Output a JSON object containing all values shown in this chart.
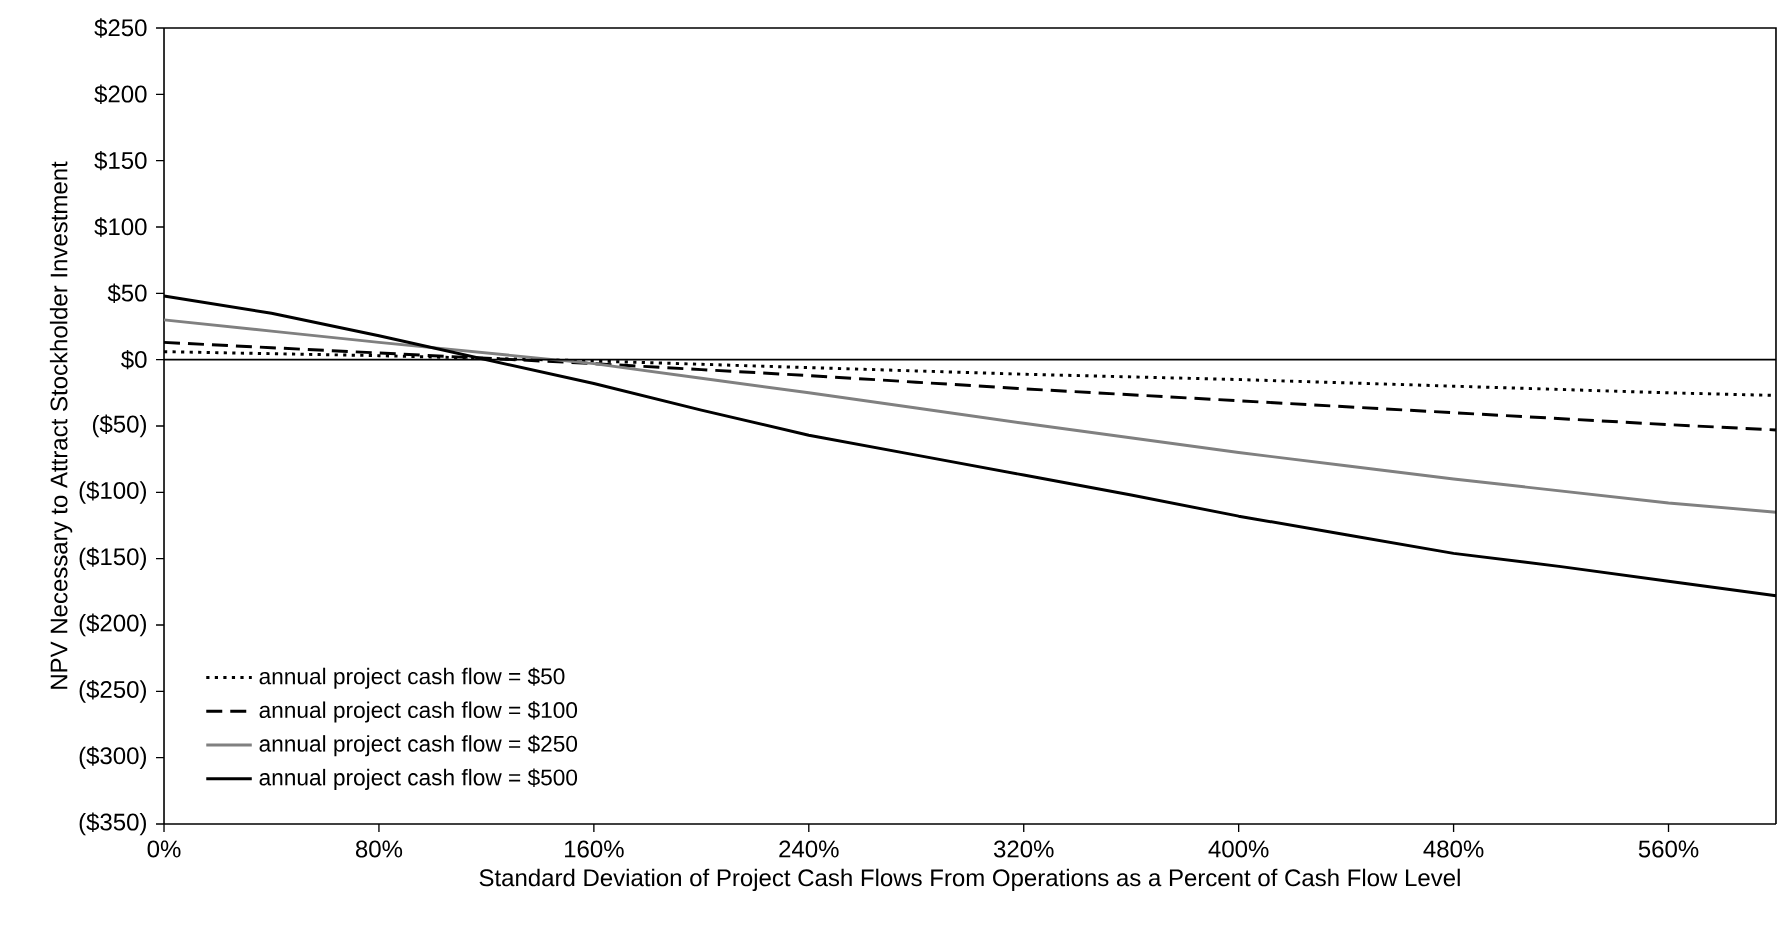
{
  "chart_data": {
    "type": "line",
    "xlabel": "Standard Deviation of Project Cash Flows From Operations as a Percent of Cash Flow Level",
    "ylabel": "NPV Necessary to Attract Stockholder Investment",
    "x": [
      0,
      40,
      80,
      120,
      160,
      200,
      240,
      280,
      320,
      360,
      400,
      440,
      480,
      520,
      560,
      600
    ],
    "series": [
      {
        "name": "annual project cash flow = $50",
        "color": "#000000",
        "line_style": "dotted",
        "values": [
          6,
          4.5,
          3,
          1,
          -1,
          -3.5,
          -6,
          -8.5,
          -11,
          -13,
          -15,
          -17.5,
          -20,
          -22.5,
          -25,
          -27
        ]
      },
      {
        "name": "annual project cash flow = $100",
        "color": "#000000",
        "line_style": "dashed",
        "values": [
          13,
          9,
          5,
          1,
          -3,
          -7.5,
          -12,
          -17,
          -22,
          -26.5,
          -31,
          -35.5,
          -40,
          -44.5,
          -49,
          -53
        ]
      },
      {
        "name": "annual project cash flow = $250",
        "color": "#808080",
        "line_style": "solid",
        "values": [
          30,
          21.5,
          13,
          5,
          -3,
          -14,
          -25,
          -36.5,
          -48,
          -59,
          -70,
          -80,
          -90,
          -99,
          -108,
          -115
        ]
      },
      {
        "name": "annual project cash flow = $500",
        "color": "#000000",
        "line_style": "solid",
        "values": [
          48,
          35,
          18,
          0,
          -18,
          -38,
          -57,
          -72,
          -87,
          -102,
          -118,
          -132,
          -146,
          -156,
          -167,
          -178
        ]
      }
    ],
    "xlim": [
      0,
      600
    ],
    "xticks": [
      {
        "value": 0,
        "label": "0%"
      },
      {
        "value": 80,
        "label": "80%"
      },
      {
        "value": 160,
        "label": "160%"
      },
      {
        "value": 240,
        "label": "240%"
      },
      {
        "value": 320,
        "label": "320%"
      },
      {
        "value": 400,
        "label": "400%"
      },
      {
        "value": 480,
        "label": "480%"
      },
      {
        "value": 560,
        "label": "560%"
      }
    ],
    "ylim": [
      -350,
      250
    ],
    "yticks": [
      {
        "value": 250,
        "label": "$250"
      },
      {
        "value": 200,
        "label": "$200"
      },
      {
        "value": 150,
        "label": "$150"
      },
      {
        "value": 100,
        "label": "$100"
      },
      {
        "value": 50,
        "label": "$50"
      },
      {
        "value": 0,
        "label": "$0"
      },
      {
        "value": -50,
        "label": "($50)"
      },
      {
        "value": -100,
        "label": "($100)"
      },
      {
        "value": -150,
        "label": "($150)"
      },
      {
        "value": -200,
        "label": "($200)"
      },
      {
        "value": -250,
        "label": "($250)"
      },
      {
        "value": -300,
        "label": "($300)"
      },
      {
        "value": -350,
        "label": "($350)"
      }
    ],
    "ref_lines": [
      {
        "axis": "y",
        "value": 0,
        "color": "#000000"
      }
    ],
    "grid": false,
    "legend": "bottom left",
    "marker": "none"
  }
}
